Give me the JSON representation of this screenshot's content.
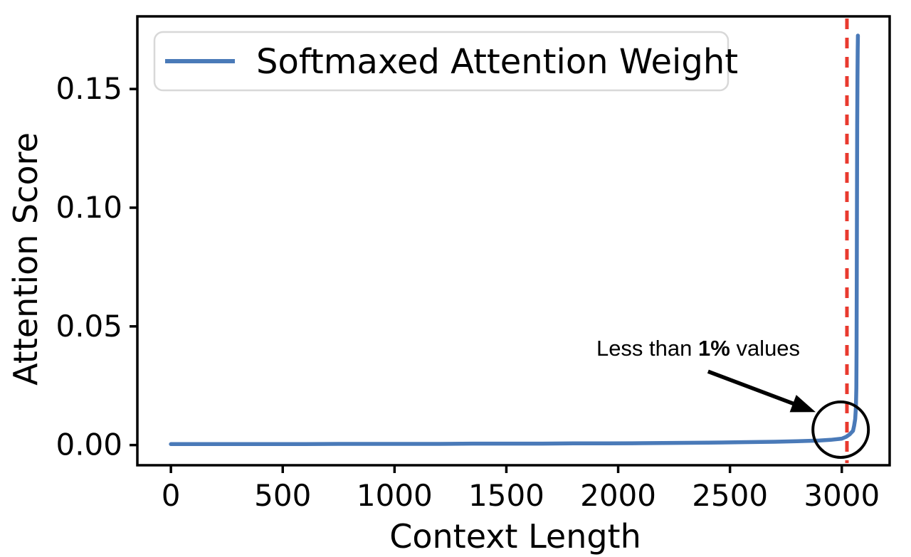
{
  "figure": {
    "background": "#ffffff",
    "axis_color": "#000000"
  },
  "chart_data": {
    "type": "line",
    "title": "",
    "xlabel": "Context Length",
    "ylabel": "Attention Score",
    "xlim": [
      -150,
      3214
    ],
    "ylim": [
      -0.0085,
      0.1806
    ],
    "grid": false,
    "xticks": [
      0,
      500,
      1000,
      1500,
      2000,
      2500,
      3000
    ],
    "xtick_labels": [
      "0",
      "500",
      "1000",
      "1500",
      "2000",
      "2500",
      "3000"
    ],
    "yticks": [
      0.0,
      0.05,
      0.1,
      0.15
    ],
    "ytick_labels": [
      "0.00",
      "0.05",
      "0.10",
      "0.15"
    ],
    "legend": {
      "label": "Softmaxed Attention Weight",
      "position": "upper left",
      "border_color": "#d8d8d8",
      "background": "#ffffff"
    },
    "series": [
      {
        "name": "Softmaxed Attention Weight",
        "color": "#4a7ab8",
        "width": 5.5,
        "points": [
          [
            0,
            0.0004
          ],
          [
            150,
            0.0004
          ],
          [
            300,
            0.0004
          ],
          [
            450,
            0.0004
          ],
          [
            600,
            0.0004
          ],
          [
            750,
            0.0005
          ],
          [
            900,
            0.0005
          ],
          [
            1050,
            0.0005
          ],
          [
            1200,
            0.0005
          ],
          [
            1350,
            0.0006
          ],
          [
            1500,
            0.0006
          ],
          [
            1650,
            0.0006
          ],
          [
            1800,
            0.0007
          ],
          [
            1950,
            0.0007
          ],
          [
            2100,
            0.0008
          ],
          [
            2250,
            0.0009
          ],
          [
            2400,
            0.001
          ],
          [
            2550,
            0.0012
          ],
          [
            2700,
            0.0014
          ],
          [
            2800,
            0.0016
          ],
          [
            2900,
            0.0019
          ],
          [
            2950,
            0.0022
          ],
          [
            3000,
            0.0027
          ],
          [
            3020,
            0.0035
          ],
          [
            3035,
            0.0045
          ],
          [
            3050,
            0.006
          ],
          [
            3055,
            0.008
          ],
          [
            3060,
            0.011
          ],
          [
            3063,
            0.016
          ],
          [
            3065,
            0.024
          ],
          [
            3066,
            0.04
          ],
          [
            3067,
            0.07
          ],
          [
            3068,
            0.105
          ],
          [
            3069,
            0.135
          ],
          [
            3070,
            0.155
          ],
          [
            3071,
            0.166
          ],
          [
            3072,
            0.1725
          ]
        ]
      }
    ],
    "vline": {
      "x": 3023,
      "color": "#e9392e",
      "style": "dashed",
      "dash": [
        15,
        12
      ],
      "width": 5
    },
    "annotation": {
      "text_prefix": "Less than ",
      "text_bold": "1%",
      "text_suffix": " values",
      "text_x": 2358,
      "text_y": 0.0376,
      "arrow_tail": [
        2402,
        0.031
      ],
      "arrow_tip": [
        2883,
        0.0139
      ],
      "color": "#000000",
      "circle": {
        "x": 2995,
        "y": 0.0065,
        "radius_px": 39
      }
    }
  }
}
